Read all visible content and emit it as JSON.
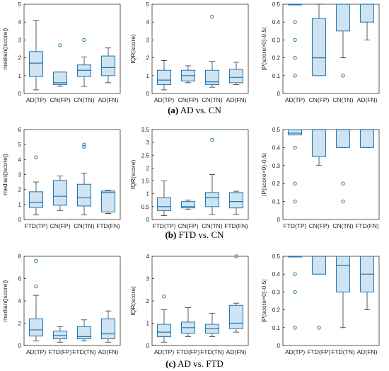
{
  "colors": {
    "box_stroke": "#1f77b4",
    "box_fill": "#cfe3f0",
    "whisker": "#333333",
    "outlier": "#1f77b4",
    "axis": "#333333"
  },
  "captions": [
    {
      "tag": "(a)",
      "text": "AD vs. CN"
    },
    {
      "tag": "(b)",
      "text": "FTD vs. CN"
    },
    {
      "tag": "(c)",
      "text": "AD vs. FTD"
    }
  ],
  "chart_data": [
    {
      "type": "box",
      "ylabel": "median(|score|)",
      "ylim": [
        0,
        5
      ],
      "yticks": [
        "0",
        "1",
        "2",
        "3",
        "4",
        "5"
      ],
      "categories": [
        "AD(TP)",
        "CN(FP)",
        "CN(TN)",
        "AD(FN)"
      ],
      "boxes": [
        {
          "min": 0.2,
          "q1": 0.95,
          "median": 1.7,
          "q3": 2.35,
          "max": 4.1,
          "outliers": []
        },
        {
          "min": 0.4,
          "q1": 0.5,
          "median": 0.6,
          "q3": 1.2,
          "max": 1.2,
          "outliers": [
            2.7
          ]
        },
        {
          "min": 0.4,
          "q1": 0.95,
          "median": 1.3,
          "q3": 1.6,
          "max": 2.05,
          "outliers": [
            3.0
          ]
        },
        {
          "min": 0.6,
          "q1": 1.0,
          "median": 1.45,
          "q3": 2.1,
          "max": 2.55,
          "outliers": []
        }
      ]
    },
    {
      "type": "box",
      "ylabel": "IQR(score)",
      "ylim": [
        0,
        5
      ],
      "yticks": [
        "0",
        "1",
        "2",
        "3",
        "4",
        "5"
      ],
      "categories": [
        "AD(TP)",
        "CN(FP)",
        "CN(TN)",
        "AD(FN)"
      ],
      "boxes": [
        {
          "min": 0.2,
          "q1": 0.5,
          "median": 0.75,
          "q3": 1.3,
          "max": 1.85,
          "outliers": []
        },
        {
          "min": 0.6,
          "q1": 0.7,
          "median": 1.0,
          "q3": 1.3,
          "max": 1.55,
          "outliers": []
        },
        {
          "min": 0.35,
          "q1": 0.5,
          "median": 0.65,
          "q3": 1.3,
          "max": 1.8,
          "outliers": [
            4.3
          ]
        },
        {
          "min": 0.5,
          "q1": 0.6,
          "median": 0.9,
          "q3": 1.35,
          "max": 1.75,
          "outliers": []
        }
      ]
    },
    {
      "type": "box",
      "ylabel": "|P(score>0)-0.5|",
      "ylim": [
        0,
        0.5
      ],
      "yticks": [
        "0",
        "0.1",
        "0.2",
        "0.3",
        "0.4",
        "0.5"
      ],
      "categories": [
        "AD(TP)",
        "CN(FP)",
        "CN(TN)",
        "AD(FN)"
      ],
      "boxes": [
        {
          "min": 0.5,
          "q1": 0.5,
          "median": 0.5,
          "q3": 0.5,
          "max": 0.5,
          "outliers": [
            0.4,
            0.3,
            0.2,
            0.1
          ]
        },
        {
          "min": 0.1,
          "q1": 0.1,
          "median": 0.2,
          "q3": 0.42,
          "max": 0.5,
          "outliers": []
        },
        {
          "min": 0.2,
          "q1": 0.35,
          "median": 0.5,
          "q3": 0.5,
          "max": 0.5,
          "outliers": [
            0.1
          ]
        },
        {
          "min": 0.3,
          "q1": 0.4,
          "median": 0.5,
          "q3": 0.5,
          "max": 0.5,
          "outliers": []
        }
      ]
    },
    {
      "type": "box",
      "ylabel": "median(|score|)",
      "ylim": [
        0,
        6
      ],
      "yticks": [
        "0",
        "1",
        "2",
        "3",
        "4",
        "5",
        "6"
      ],
      "categories": [
        "FTD(TP)",
        "CN(FP)",
        "CN(TN)",
        "FTD(FN)"
      ],
      "boxes": [
        {
          "min": 0.3,
          "q1": 0.8,
          "median": 1.15,
          "q3": 1.85,
          "max": 2.5,
          "outliers": [
            4.15
          ]
        },
        {
          "min": 0.6,
          "q1": 0.95,
          "median": 1.55,
          "q3": 2.6,
          "max": 2.9,
          "outliers": []
        },
        {
          "min": 0.3,
          "q1": 0.9,
          "median": 1.45,
          "q3": 2.35,
          "max": 3.1,
          "outliers": [
            4.85,
            5.0
          ]
        },
        {
          "min": 0.4,
          "q1": 0.5,
          "median": 1.8,
          "q3": 1.9,
          "max": 1.95,
          "outliers": []
        }
      ]
    },
    {
      "type": "box",
      "ylabel": "IQR(score)",
      "ylim": [
        0,
        3.5
      ],
      "yticks": [
        "0",
        "0.5",
        "1",
        "1.5",
        "2",
        "2.5",
        "3",
        "3.5"
      ],
      "categories": [
        "FTD(TP)",
        "CN(FP)",
        "CN(TN)",
        "FTD(FN)"
      ],
      "boxes": [
        {
          "min": 0.15,
          "q1": 0.35,
          "median": 0.5,
          "q3": 0.85,
          "max": 1.5,
          "outliers": []
        },
        {
          "min": 0.4,
          "q1": 0.45,
          "median": 0.5,
          "q3": 0.7,
          "max": 0.75,
          "outliers": []
        },
        {
          "min": 0.2,
          "q1": 0.5,
          "median": 0.85,
          "q3": 1.05,
          "max": 1.75,
          "outliers": [
            3.1
          ]
        },
        {
          "min": 0.2,
          "q1": 0.45,
          "median": 0.7,
          "q3": 1.05,
          "max": 1.1,
          "outliers": []
        }
      ]
    },
    {
      "type": "box",
      "ylabel": "|P(score>0)-0.5|",
      "ylim": [
        0,
        0.5
      ],
      "yticks": [
        "0",
        "0.1",
        "0.2",
        "0.3",
        "0.4",
        "0.5"
      ],
      "categories": [
        "FTD(TP)",
        "CN(FP)",
        "CN(TN)",
        "FTD(FN)"
      ],
      "boxes": [
        {
          "min": 0.47,
          "q1": 0.47,
          "median": 0.48,
          "q3": 0.5,
          "max": 0.5,
          "outliers": [
            0.4,
            0.2,
            0.1
          ]
        },
        {
          "min": 0.3,
          "q1": 0.35,
          "median": 0.5,
          "q3": 0.5,
          "max": 0.5,
          "outliers": []
        },
        {
          "min": 0.4,
          "q1": 0.4,
          "median": 0.5,
          "q3": 0.5,
          "max": 0.5,
          "outliers": [
            0.2,
            0.1
          ]
        },
        {
          "min": 0.4,
          "q1": 0.4,
          "median": 0.5,
          "q3": 0.5,
          "max": 0.5,
          "outliers": []
        }
      ]
    },
    {
      "type": "box",
      "ylabel": "median(|score|)",
      "ylim": [
        0,
        8
      ],
      "yticks": [
        "0",
        "2",
        "4",
        "6",
        "8"
      ],
      "categories": [
        "AD(TP)",
        "FTD(FP)",
        "FTD(TN)",
        "AD(FN)"
      ],
      "boxes": [
        {
          "min": 0.4,
          "q1": 0.85,
          "median": 1.4,
          "q3": 2.4,
          "max": 4.5,
          "outliers": [
            5.3,
            7.6
          ]
        },
        {
          "min": 0.3,
          "q1": 0.6,
          "median": 0.9,
          "q3": 1.3,
          "max": 1.7,
          "outliers": []
        },
        {
          "min": 0.4,
          "q1": 0.6,
          "median": 0.8,
          "q3": 1.7,
          "max": 2.3,
          "outliers": []
        },
        {
          "min": 0.3,
          "q1": 0.6,
          "median": 1.05,
          "q3": 2.4,
          "max": 3.1,
          "outliers": []
        }
      ]
    },
    {
      "type": "box",
      "ylabel": "IQR(score)",
      "ylim": [
        0,
        4
      ],
      "yticks": [
        "0",
        "1",
        "2",
        "3",
        "4"
      ],
      "categories": [
        "AD(TP)",
        "FTD(FP)",
        "FTD(TN)",
        "AD(FN)"
      ],
      "boxes": [
        {
          "min": 0.15,
          "q1": 0.4,
          "median": 0.6,
          "q3": 0.95,
          "max": 1.6,
          "outliers": [
            2.2
          ]
        },
        {
          "min": 0.4,
          "q1": 0.55,
          "median": 0.8,
          "q3": 1.05,
          "max": 1.7,
          "outliers": []
        },
        {
          "min": 0.4,
          "q1": 0.55,
          "median": 0.75,
          "q3": 0.95,
          "max": 1.45,
          "outliers": []
        },
        {
          "min": 0.6,
          "q1": 0.75,
          "median": 1.0,
          "q3": 1.8,
          "max": 1.9,
          "outliers": [
            4.0
          ]
        }
      ]
    },
    {
      "type": "box",
      "ylabel": "|P(score>0)-0.5|",
      "ylim": [
        0,
        0.5
      ],
      "yticks": [
        "0",
        "0.1",
        "0.2",
        "0.3",
        "0.4",
        "0.5"
      ],
      "categories": [
        "AD(TP)",
        "FTD(FP)",
        "FTD(TN)",
        "AD(FN)"
      ],
      "boxes": [
        {
          "min": 0.5,
          "q1": 0.5,
          "median": 0.5,
          "q3": 0.5,
          "max": 0.5,
          "outliers": [
            0.4,
            0.3,
            0.1
          ]
        },
        {
          "min": 0.4,
          "q1": 0.4,
          "median": 0.5,
          "q3": 0.5,
          "max": 0.5,
          "outliers": [
            0.1
          ]
        },
        {
          "min": 0.1,
          "q1": 0.3,
          "median": 0.45,
          "q3": 0.5,
          "max": 0.5,
          "outliers": []
        },
        {
          "min": 0.2,
          "q1": 0.3,
          "median": 0.4,
          "q3": 0.5,
          "max": 0.5,
          "outliers": []
        }
      ]
    }
  ]
}
